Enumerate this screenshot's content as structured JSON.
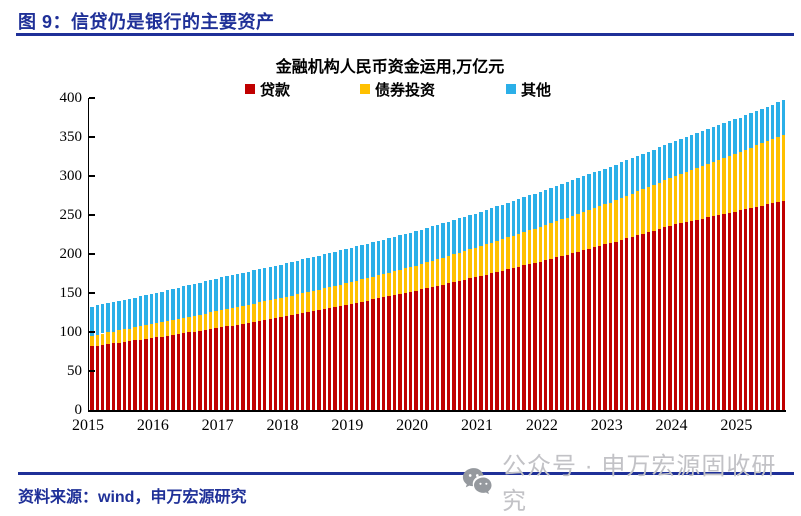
{
  "figure": {
    "title": "图 9：信贷仍是银行的主要资产"
  },
  "footer": {
    "source": "资料来源：wind，申万宏源研究"
  },
  "watermark": {
    "icon": "wechat-icon",
    "text": "公众号 · 申万宏源固收研究"
  },
  "colors": {
    "accent_navy": "#1f3098",
    "loans_red": "#C00000",
    "bonds_yellow": "#FFC000",
    "other_blue": "#2BAFE8",
    "watermark_gray": "#c2c2c6"
  },
  "chart_data": {
    "type": "bar",
    "stacked": true,
    "title": "金融机构人民币资金运用,万亿元",
    "xlabel": "",
    "ylabel": "",
    "ylim": [
      0,
      400
    ],
    "y_tick_step": 50,
    "grid": false,
    "legend_position": "top",
    "x_freq": "monthly",
    "x_start": "2015-01",
    "x_end": "2025-09",
    "x_year_labels": [
      "2015",
      "2016",
      "2017",
      "2018",
      "2019",
      "2020",
      "2021",
      "2022",
      "2023",
      "2024",
      "2025"
    ],
    "series": [
      {
        "name": "贷款",
        "color": "#C00000",
        "values": [
          81.5,
          82.5,
          83.4,
          84.4,
          85.3,
          86.3,
          87.3,
          88.2,
          89.2,
          90.1,
          91.1,
          92.0,
          93.0,
          94.1,
          95.2,
          96.3,
          97.3,
          98.4,
          99.5,
          100.6,
          101.7,
          102.7,
          103.8,
          104.9,
          106.0,
          107.2,
          108.3,
          109.5,
          110.7,
          111.8,
          113.0,
          114.2,
          115.3,
          116.5,
          117.7,
          118.8,
          120.0,
          121.3,
          122.7,
          124.0,
          125.3,
          126.7,
          128.0,
          129.3,
          130.7,
          132.0,
          133.3,
          134.7,
          136.0,
          137.4,
          138.8,
          140.3,
          141.7,
          143.1,
          144.5,
          145.9,
          147.3,
          148.8,
          150.2,
          151.6,
          153.0,
          154.6,
          156.2,
          157.8,
          159.3,
          160.9,
          162.5,
          164.1,
          165.7,
          167.3,
          168.8,
          170.4,
          172.0,
          173.7,
          175.3,
          177.0,
          178.7,
          180.3,
          182.0,
          183.7,
          185.3,
          187.0,
          188.7,
          190.3,
          192.0,
          193.8,
          195.7,
          197.5,
          199.3,
          201.2,
          203.0,
          204.8,
          206.7,
          208.5,
          210.3,
          212.2,
          214.0,
          216.0,
          218.0,
          220.0,
          222.0,
          224.0,
          226.0,
          228.0,
          230.0,
          232.0,
          234.0,
          236.0,
          238.0,
          239.5,
          241.0,
          242.5,
          244.0,
          245.5,
          247.0,
          248.5,
          250.0,
          251.5,
          253.0,
          254.5,
          256.0,
          257.5,
          259.0,
          260.5,
          262.0,
          263.5,
          265.0,
          266.5,
          268.0
        ]
      },
      {
        "name": "债券投资",
        "color": "#FFC000",
        "values": [
          14.0,
          14.3,
          14.7,
          15.0,
          15.3,
          15.7,
          16.0,
          16.3,
          16.7,
          17.0,
          17.3,
          17.7,
          18.0,
          18.3,
          18.7,
          19.0,
          19.3,
          19.7,
          20.0,
          20.3,
          20.7,
          21.0,
          21.3,
          21.7,
          22.0,
          22.3,
          22.5,
          22.8,
          23.0,
          23.3,
          23.5,
          23.8,
          24.0,
          24.3,
          24.5,
          24.8,
          25.0,
          25.3,
          25.5,
          25.8,
          26.0,
          26.3,
          26.5,
          26.8,
          27.0,
          27.3,
          27.5,
          27.8,
          28.0,
          28.3,
          28.7,
          29.0,
          29.3,
          29.7,
          30.0,
          30.3,
          30.7,
          31.0,
          31.3,
          31.7,
          32.0,
          32.5,
          33.0,
          33.5,
          34.0,
          34.5,
          35.0,
          35.5,
          36.0,
          36.5,
          37.0,
          37.5,
          38.0,
          38.6,
          39.2,
          39.8,
          40.3,
          40.9,
          41.5,
          42.1,
          42.7,
          43.3,
          43.8,
          44.4,
          45.0,
          45.6,
          46.2,
          46.8,
          47.3,
          47.9,
          48.5,
          49.1,
          49.7,
          50.3,
          50.8,
          51.4,
          52.0,
          52.8,
          53.7,
          54.5,
          55.3,
          56.2,
          57.0,
          57.8,
          58.7,
          59.5,
          60.3,
          61.2,
          62.0,
          63.1,
          64.2,
          65.3,
          66.3,
          67.4,
          68.5,
          69.6,
          70.7,
          71.7,
          72.8,
          73.9,
          75.0,
          76.3,
          77.5,
          78.8,
          80.0,
          81.3,
          82.5,
          83.8,
          85.0
        ]
      },
      {
        "name": "其他",
        "color": "#2BAFE8",
        "values": [
          37.0,
          37.2,
          37.3,
          37.5,
          37.7,
          37.8,
          38.0,
          38.2,
          38.3,
          38.5,
          38.7,
          38.8,
          39.0,
          39.3,
          39.5,
          39.8,
          40.0,
          40.3,
          40.5,
          40.8,
          41.0,
          41.3,
          41.5,
          41.8,
          42.0,
          42.1,
          42.2,
          42.3,
          42.3,
          42.4,
          42.5,
          42.6,
          42.7,
          42.8,
          42.8,
          42.9,
          43.0,
          43.1,
          43.2,
          43.3,
          43.3,
          43.4,
          43.5,
          43.6,
          43.7,
          43.8,
          43.8,
          43.9,
          44.0,
          44.0,
          44.0,
          44.0,
          44.0,
          44.0,
          44.0,
          44.0,
          44.0,
          44.0,
          44.0,
          44.0,
          44.0,
          44.0,
          44.0,
          44.0,
          44.0,
          44.0,
          44.0,
          44.0,
          44.0,
          44.0,
          44.0,
          44.0,
          44.0,
          44.1,
          44.2,
          44.3,
          44.3,
          44.4,
          44.5,
          44.6,
          44.7,
          44.8,
          44.8,
          44.9,
          45.0,
          45.1,
          45.2,
          45.3,
          45.3,
          45.4,
          45.5,
          45.6,
          45.7,
          45.8,
          45.8,
          45.9,
          46.0,
          45.9,
          45.8,
          45.8,
          45.7,
          45.6,
          45.5,
          45.4,
          45.3,
          45.3,
          45.2,
          45.1,
          45.0,
          44.9,
          44.8,
          44.8,
          44.7,
          44.6,
          44.5,
          44.4,
          44.3,
          44.3,
          44.2,
          44.1,
          44.0,
          44.0,
          44.0,
          44.0,
          44.0,
          44.0,
          44.0,
          44.0,
          44.0
        ]
      }
    ]
  }
}
